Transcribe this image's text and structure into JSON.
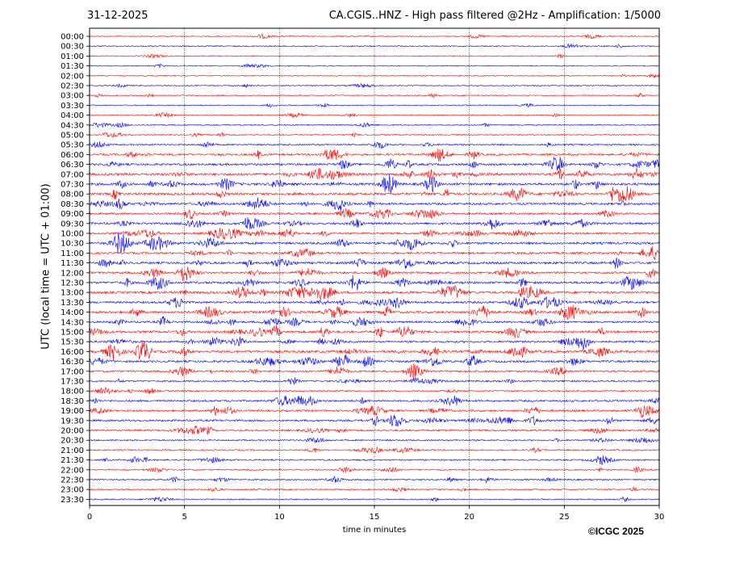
{
  "header": {
    "date": "31-12-2025",
    "title": "CA.CGIS..HNZ - High pass filtered @2Hz - Amplification: 1/5000"
  },
  "footer": {
    "copyright": "©ICGC 2025"
  },
  "chart_data": {
    "type": "line",
    "xlabel": "time in minutes",
    "ylabel": "UTC (local time = UTC + 01:00)",
    "xlim": [
      0,
      30
    ],
    "xticks": [
      0,
      5,
      10,
      15,
      20,
      25,
      30
    ],
    "grid": "vertical dotted lines at 5 minute intervals",
    "colors": {
      "even_rows": "#ff0000",
      "odd_rows": "#0000ff"
    },
    "rows": [
      "00:00",
      "00:30",
      "01:00",
      "01:30",
      "02:00",
      "02:30",
      "03:00",
      "03:30",
      "04:00",
      "04:30",
      "05:00",
      "05:30",
      "06:00",
      "06:30",
      "07:00",
      "07:30",
      "08:00",
      "08:30",
      "09:00",
      "09:30",
      "10:00",
      "10:30",
      "11:00",
      "11:30",
      "12:00",
      "12:30",
      "13:00",
      "13:30",
      "14:00",
      "14:30",
      "15:00",
      "15:30",
      "16:00",
      "16:30",
      "17:00",
      "17:30",
      "18:00",
      "18:30",
      "19:00",
      "19:30",
      "20:00",
      "20:30",
      "21:00",
      "21:30",
      "22:00",
      "22:30",
      "23:00",
      "23:30"
    ],
    "row_activity": [
      0.1,
      0.15,
      0.1,
      0.08,
      0.1,
      0.1,
      0.1,
      0.12,
      0.12,
      0.15,
      0.15,
      0.35,
      0.55,
      0.6,
      0.8,
      0.75,
      0.75,
      0.6,
      0.55,
      0.6,
      0.55,
      0.7,
      0.6,
      0.7,
      0.6,
      0.7,
      0.75,
      0.6,
      0.7,
      0.55,
      0.7,
      0.55,
      0.75,
      0.6,
      0.5,
      0.35,
      0.25,
      0.5,
      0.5,
      0.55,
      0.45,
      0.3,
      0.3,
      0.3,
      0.25,
      0.3,
      0.2,
      0.2
    ]
  }
}
